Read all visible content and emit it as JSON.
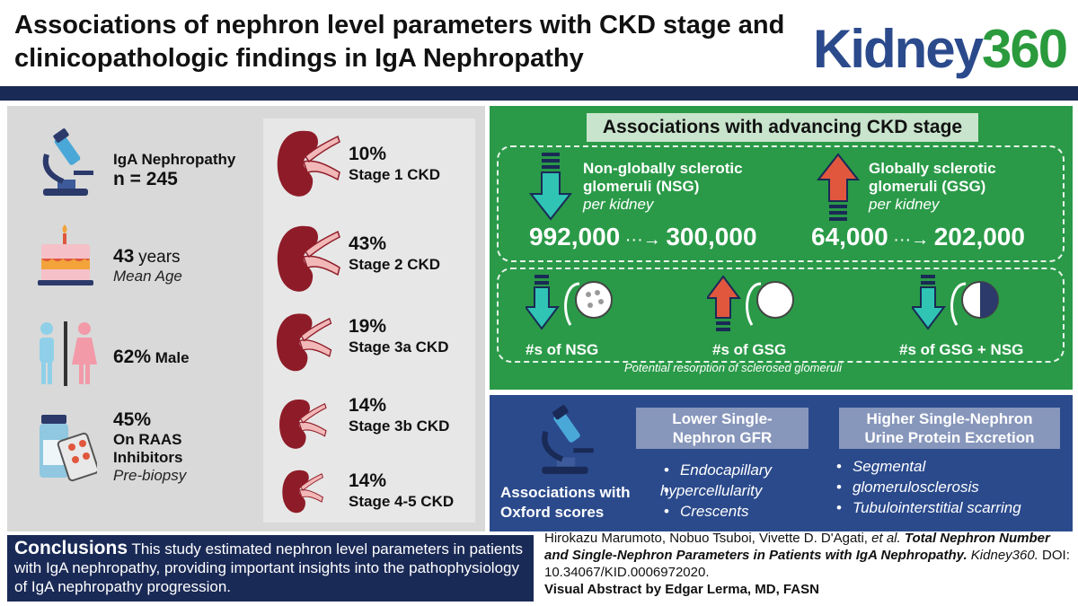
{
  "header": {
    "title": "Associations of nephron level parameters with CKD stage and clinicopathologic findings in IgA Nephropathy",
    "logo_kidney": "Kidney",
    "logo_number": "360"
  },
  "left_stats": {
    "cohort_label": "IgA Nephropathy",
    "cohort_n": "n = 245",
    "age_value": "43",
    "age_unit": "years",
    "age_caption": "Mean Age",
    "male_value": "62%",
    "male_label": "Male",
    "raas_value": "45%",
    "raas_label1": "On RAAS",
    "raas_label2": "Inhibitors",
    "raas_caption": "Pre-biopsy"
  },
  "stages": [
    {
      "pct": "10%",
      "label": "Stage 1 CKD"
    },
    {
      "pct": "43%",
      "label": "Stage 2 CKD"
    },
    {
      "pct": "19%",
      "label": "Stage 3a CKD"
    },
    {
      "pct": "14%",
      "label": "Stage 3b CKD"
    },
    {
      "pct": "14%",
      "label": "Stage 4-5 CKD"
    }
  ],
  "green": {
    "title": "Associations with advancing CKD stage",
    "nsg_line1": "Non-globally sclerotic",
    "nsg_line2": "glomeruli (NSG)",
    "nsg_per": "per kidney",
    "nsg_from": "992,000",
    "nsg_to": "300,000",
    "gsg_line1": "Globally sclerotic",
    "gsg_line2": "glomeruli (GSG)",
    "gsg_per": "per kidney",
    "gsg_from": "64,000",
    "gsg_to": "202,000",
    "count_nsg": "#s of NSG",
    "count_gsg": "#s of GSG",
    "count_both": "#s of GSG + NSG",
    "resorption": "Potential resorption of sclerosed glomeruli"
  },
  "blue": {
    "assoc_line1": "Associations with",
    "assoc_line2": "Oxford scores",
    "lower_head1": "Lower Single-",
    "lower_head2": "Nephron GFR",
    "lower_items": [
      "Endocapillary",
      "hypercellularity",
      "Crescents"
    ],
    "higher_head1": "Higher Single-Nephron",
    "higher_head2": "Urine Protein Excretion",
    "higher_items": [
      "Segmental",
      "glomerulosclerosis",
      "Tubulointerstitial scarring"
    ]
  },
  "conclusions": {
    "head": "Conclusions",
    "text": "This study estimated nephron level parameters in patients with IgA nephropathy, providing important insights into the pathophysiology of IgA nephropathy progression."
  },
  "citation": {
    "authors": "Hirokazu Marumoto, Nobuo Tsuboi, Vivette D. D'Agati, ",
    "etal": "et al.",
    "title": "Total Nephron Number and Single-Nephron Parameters in Patients with IgA Nephropathy.",
    "journal": "Kidney360.",
    "doi": "DOI: 10.34067/KID.0006972020.",
    "credit": "Visual Abstract by Edgar Lerma, MD, FASN"
  },
  "colors": {
    "navy": "#1a2a56",
    "green": "#2a9a48",
    "blue": "#2b4a8c",
    "teal_arrow": "#2fc4b4",
    "red_arrow": "#e0573e",
    "kidney": "#8e1c28"
  },
  "icons": [
    "microscope-icon",
    "birthday-cake-icon",
    "male-female-icon",
    "medication-icon",
    "kidney-icon",
    "down-arrow-icon",
    "up-arrow-icon",
    "glomerulus-icon"
  ]
}
